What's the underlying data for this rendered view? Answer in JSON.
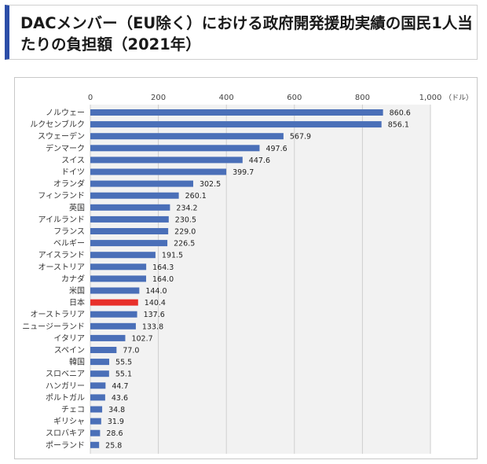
{
  "title": "DACメンバー（EU除く）における政府開発援助実績の国民1人当たりの負担額（2021年）",
  "chart_data": {
    "type": "bar",
    "orientation": "horizontal",
    "title": "",
    "xlabel": "",
    "ylabel": "",
    "unit": "（ドル）",
    "xlim": [
      0,
      1000
    ],
    "x_ticks": [
      "0",
      "200",
      "400",
      "600",
      "800",
      "1,000"
    ],
    "grid": true,
    "colors": {
      "default": "#4a6fb8",
      "highlight": "#e8302a",
      "plot_bg": "#f2f2f2"
    },
    "highlight": "日本",
    "categories": [
      "ノルウェー",
      "ルクセンブルク",
      "スウェーデン",
      "デンマーク",
      "スイス",
      "ドイツ",
      "オランダ",
      "フィンランド",
      "英国",
      "アイルランド",
      "フランス",
      "ベルギー",
      "アイスランド",
      "オーストリア",
      "カナダ",
      "米国",
      "日本",
      "オーストラリア",
      "ニュージーランド",
      "イタリア",
      "スペイン",
      "韓国",
      "スロベニア",
      "ハンガリー",
      "ポルトガル",
      "チェコ",
      "ギリシャ",
      "スロバキア",
      "ポーランド"
    ],
    "values": [
      860.6,
      856.1,
      567.9,
      497.6,
      447.6,
      399.7,
      302.5,
      260.1,
      234.2,
      230.5,
      229.0,
      226.5,
      191.5,
      164.3,
      164.0,
      144.0,
      140.4,
      137.6,
      133.8,
      102.7,
      77.0,
      55.5,
      55.1,
      44.7,
      43.6,
      34.8,
      31.9,
      28.6,
      25.8
    ],
    "value_labels": [
      "860.6",
      "856.1",
      "567.9",
      "497.6",
      "447.6",
      "399.7",
      "302.5",
      "260.1",
      "234.2",
      "230.5",
      "229.0",
      "226.5",
      "191.5",
      "164.3",
      "164.0",
      "144.0",
      "140.4",
      "137.6",
      "133.8",
      "102.7",
      "77.0",
      "55.5",
      "55.1",
      "44.7",
      "43.6",
      "34.8",
      "31.9",
      "28.6",
      "25.8"
    ]
  }
}
